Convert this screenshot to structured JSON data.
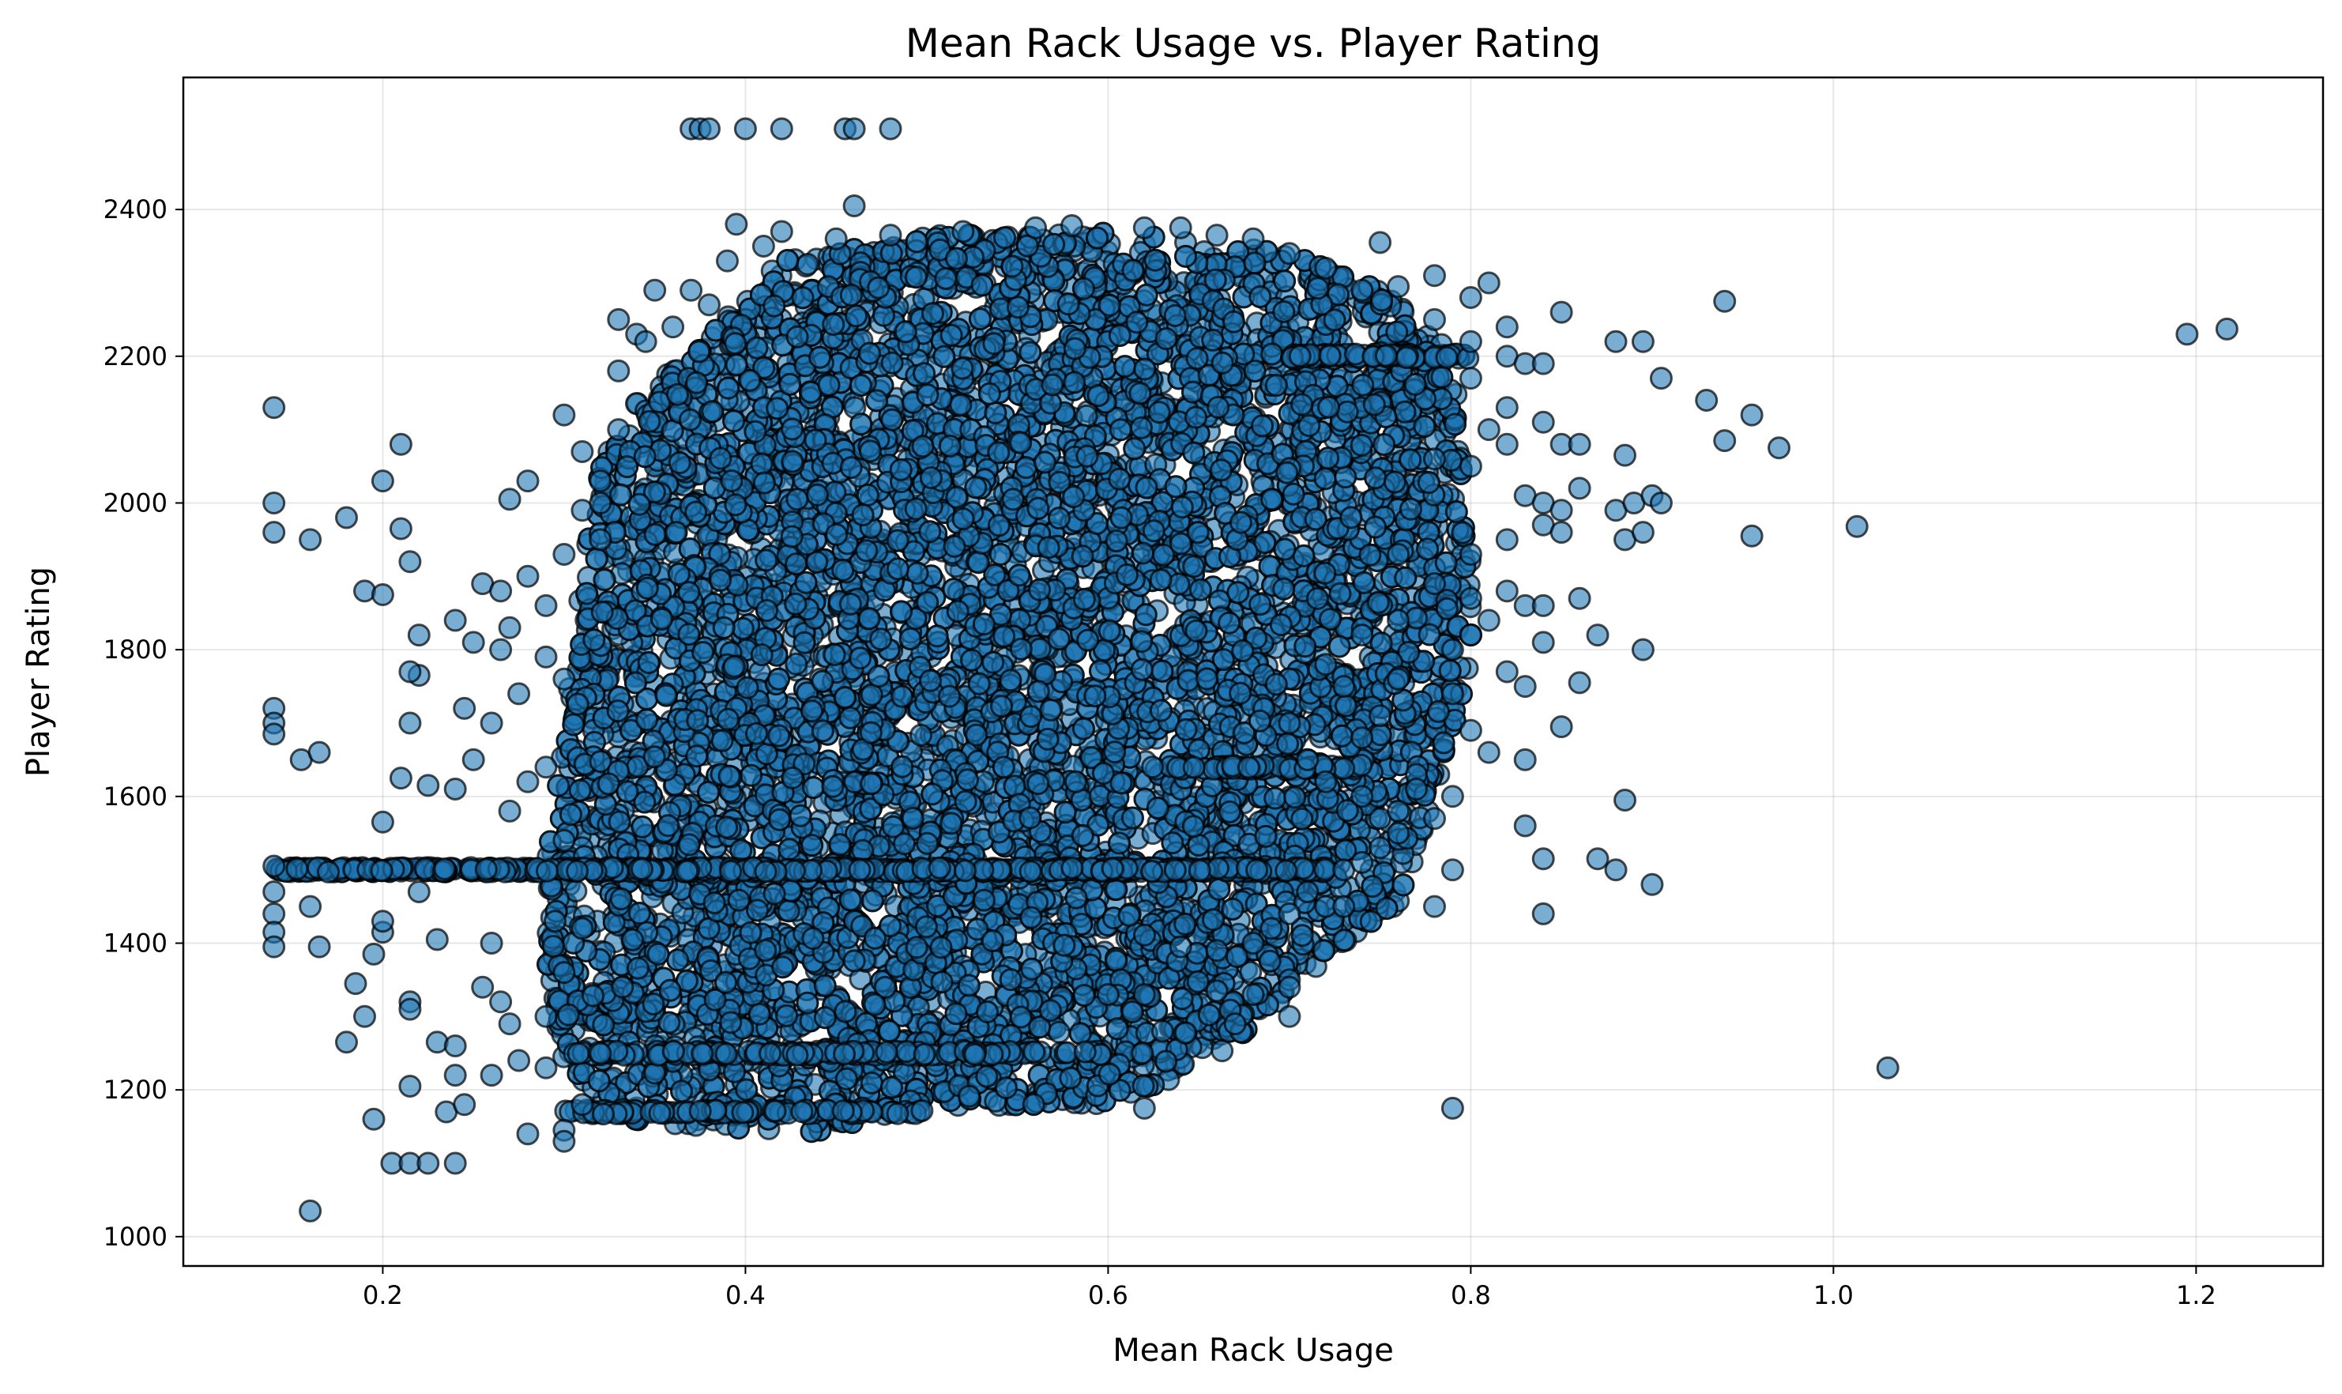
{
  "chart_data": {
    "type": "scatter",
    "title": "Mean Rack Usage vs. Player Rating",
    "xlabel": "Mean Rack Usage",
    "ylabel": "Player Rating",
    "xlim": [
      0.09,
      1.27
    ],
    "ylim": [
      960,
      2580
    ],
    "xticks": [
      0.2,
      0.4,
      0.6,
      0.8,
      1.0,
      1.2
    ],
    "xtick_labels": [
      "0.2",
      "0.4",
      "0.6",
      "0.8",
      "1.0",
      "1.2"
    ],
    "yticks": [
      1000,
      1200,
      1400,
      1600,
      1800,
      2000,
      2200,
      2400
    ],
    "ytick_labels": [
      "1000",
      "1200",
      "1400",
      "1600",
      "1800",
      "2000",
      "2200",
      "2400"
    ],
    "grid": true,
    "legend": "none",
    "marker_face_color": "#1f77b4",
    "marker_edge_color": "#000000",
    "marker_alpha": 0.6,
    "series": [
      {
        "points": [
          [
            0.14,
            2130
          ],
          [
            0.14,
            2000
          ],
          [
            0.14,
            1960
          ],
          [
            0.14,
            1720
          ],
          [
            0.14,
            1700
          ],
          [
            0.14,
            1685
          ],
          [
            0.14,
            1505
          ],
          [
            0.14,
            1470
          ],
          [
            0.14,
            1440
          ],
          [
            0.14,
            1415
          ],
          [
            0.14,
            1395
          ],
          [
            0.16,
            1950
          ],
          [
            0.155,
            1650
          ],
          [
            0.165,
            1660
          ],
          [
            0.16,
            1450
          ],
          [
            0.165,
            1395
          ],
          [
            0.16,
            1035
          ],
          [
            0.18,
            1980
          ],
          [
            0.19,
            1880
          ],
          [
            0.2,
            1875
          ],
          [
            0.2,
            2030
          ],
          [
            0.21,
            2080
          ],
          [
            0.21,
            1965
          ],
          [
            0.215,
            1920
          ],
          [
            0.2,
            1565
          ],
          [
            0.21,
            1625
          ],
          [
            0.185,
            1345
          ],
          [
            0.19,
            1300
          ],
          [
            0.18,
            1265
          ],
          [
            0.195,
            1385
          ],
          [
            0.2,
            1415
          ],
          [
            0.2,
            1430
          ],
          [
            0.195,
            1160
          ],
          [
            0.215,
            1205
          ],
          [
            0.205,
            1100
          ],
          [
            0.215,
            1100
          ],
          [
            0.225,
            1100
          ],
          [
            0.24,
            1100
          ],
          [
            0.22,
            1820
          ],
          [
            0.22,
            1765
          ],
          [
            0.215,
            1770
          ],
          [
            0.215,
            1700
          ],
          [
            0.225,
            1615
          ],
          [
            0.22,
            1470
          ],
          [
            0.215,
            1320
          ],
          [
            0.215,
            1310
          ],
          [
            0.23,
            1405
          ],
          [
            0.23,
            1265
          ],
          [
            0.24,
            1260
          ],
          [
            0.235,
            1170
          ],
          [
            0.245,
            1180
          ],
          [
            0.24,
            1220
          ],
          [
            0.24,
            1840
          ],
          [
            0.25,
            1810
          ],
          [
            0.245,
            1720
          ],
          [
            0.26,
            1700
          ],
          [
            0.25,
            1650
          ],
          [
            0.24,
            1610
          ],
          [
            0.255,
            1890
          ],
          [
            0.265,
            1880
          ],
          [
            0.27,
            2005
          ],
          [
            0.28,
            2030
          ],
          [
            0.28,
            1900
          ],
          [
            0.27,
            1830
          ],
          [
            0.265,
            1800
          ],
          [
            0.29,
            1860
          ],
          [
            0.29,
            1790
          ],
          [
            0.275,
            1740
          ],
          [
            0.3,
            1760
          ],
          [
            0.29,
            1640
          ],
          [
            0.28,
            1620
          ],
          [
            0.27,
            1580
          ],
          [
            0.3,
            1540
          ],
          [
            0.26,
            1400
          ],
          [
            0.255,
            1340
          ],
          [
            0.265,
            1320
          ],
          [
            0.27,
            1290
          ],
          [
            0.275,
            1240
          ],
          [
            0.26,
            1220
          ],
          [
            0.28,
            1140
          ],
          [
            0.29,
            1230
          ],
          [
            0.29,
            1300
          ],
          [
            0.3,
            1145
          ],
          [
            0.3,
            1130
          ],
          [
            0.31,
            1180
          ],
          [
            0.295,
            1430
          ],
          [
            0.31,
            1420
          ],
          [
            0.3,
            1360
          ],
          [
            0.3,
            2120
          ],
          [
            0.31,
            2070
          ],
          [
            0.32,
            2030
          ],
          [
            0.31,
            1990
          ],
          [
            0.32,
            1950
          ],
          [
            0.3,
            1930
          ],
          [
            0.33,
            2100
          ],
          [
            0.32,
            2000
          ],
          [
            0.33,
            2250
          ],
          [
            0.34,
            2230
          ],
          [
            0.35,
            2290
          ],
          [
            0.36,
            2240
          ],
          [
            0.33,
            2180
          ],
          [
            0.345,
            2220
          ],
          [
            0.37,
            2510
          ],
          [
            0.375,
            2510
          ],
          [
            0.38,
            2510
          ],
          [
            0.4,
            2510
          ],
          [
            0.42,
            2510
          ],
          [
            0.455,
            2510
          ],
          [
            0.46,
            2510
          ],
          [
            0.48,
            2510
          ],
          [
            0.37,
            2290
          ],
          [
            0.38,
            2270
          ],
          [
            0.395,
            2380
          ],
          [
            0.41,
            2350
          ],
          [
            0.42,
            2370
          ],
          [
            0.39,
            2330
          ],
          [
            0.46,
            2405
          ],
          [
            0.45,
            2360
          ],
          [
            0.48,
            2365
          ],
          [
            0.52,
            2370
          ],
          [
            0.56,
            2375
          ],
          [
            0.58,
            2378
          ],
          [
            0.62,
            2375
          ],
          [
            0.64,
            2375
          ],
          [
            0.66,
            2365
          ],
          [
            0.68,
            2360
          ],
          [
            0.7,
            2340
          ],
          [
            0.72,
            2320
          ],
          [
            0.75,
            2355
          ],
          [
            0.74,
            2290
          ],
          [
            0.76,
            2295
          ],
          [
            0.78,
            2310
          ],
          [
            0.8,
            2280
          ],
          [
            0.81,
            2300
          ],
          [
            0.82,
            2240
          ],
          [
            0.85,
            2260
          ],
          [
            0.78,
            2250
          ],
          [
            0.8,
            2220
          ],
          [
            0.82,
            2200
          ],
          [
            0.83,
            2190
          ],
          [
            0.84,
            2190
          ],
          [
            0.8,
            2170
          ],
          [
            0.82,
            2130
          ],
          [
            0.81,
            2100
          ],
          [
            0.84,
            2110
          ],
          [
            0.78,
            2060
          ],
          [
            0.8,
            2050
          ],
          [
            0.82,
            2080
          ],
          [
            0.85,
            2080
          ],
          [
            0.86,
            2080
          ],
          [
            0.83,
            2010
          ],
          [
            0.84,
            2000
          ],
          [
            0.85,
            1990
          ],
          [
            0.86,
            2020
          ],
          [
            0.84,
            1970
          ],
          [
            0.85,
            1960
          ],
          [
            0.82,
            1950
          ],
          [
            0.8,
            1930
          ],
          [
            0.76,
            1930
          ],
          [
            0.78,
            1890
          ],
          [
            0.8,
            1870
          ],
          [
            0.82,
            1880
          ],
          [
            0.83,
            1860
          ],
          [
            0.84,
            1860
          ],
          [
            0.81,
            1840
          ],
          [
            0.8,
            1820
          ],
          [
            0.79,
            1800
          ],
          [
            0.82,
            1770
          ],
          [
            0.83,
            1750
          ],
          [
            0.84,
            1810
          ],
          [
            0.86,
            1870
          ],
          [
            0.76,
            1840
          ],
          [
            0.74,
            1820
          ],
          [
            0.72,
            1780
          ],
          [
            0.73,
            1750
          ],
          [
            0.75,
            1710
          ],
          [
            0.74,
            1680
          ],
          [
            0.76,
            1760
          ],
          [
            0.79,
            1740
          ],
          [
            0.8,
            1690
          ],
          [
            0.81,
            1660
          ],
          [
            0.83,
            1650
          ],
          [
            0.79,
            1600
          ],
          [
            0.7,
            1700
          ],
          [
            0.71,
            1650
          ],
          [
            0.72,
            1620
          ],
          [
            0.74,
            1600
          ],
          [
            0.75,
            1570
          ],
          [
            0.77,
            1630
          ],
          [
            0.77,
            1610
          ],
          [
            0.76,
            1580
          ],
          [
            0.75,
            1530
          ],
          [
            0.73,
            1500
          ],
          [
            0.74,
            1510
          ],
          [
            0.76,
            1550
          ],
          [
            0.78,
            1570
          ],
          [
            0.7,
            1440
          ],
          [
            0.71,
            1470
          ],
          [
            0.72,
            1450
          ],
          [
            0.73,
            1450
          ],
          [
            0.69,
            1420
          ],
          [
            0.7,
            1350
          ],
          [
            0.7,
            1340
          ],
          [
            0.7,
            1300
          ],
          [
            0.68,
            1330
          ],
          [
            0.66,
            1335
          ],
          [
            0.67,
            1290
          ],
          [
            0.66,
            1390
          ],
          [
            0.68,
            1400
          ],
          [
            0.64,
            1395
          ],
          [
            0.63,
            1280
          ],
          [
            0.62,
            1330
          ],
          [
            0.6,
            1330
          ],
          [
            0.62,
            1175
          ],
          [
            0.78,
            1450
          ],
          [
            0.79,
            1500
          ],
          [
            0.79,
            1175
          ],
          [
            0.83,
            1560
          ],
          [
            0.84,
            1440
          ],
          [
            0.84,
            1515
          ],
          [
            0.87,
            1515
          ],
          [
            0.88,
            1500
          ],
          [
            0.9,
            1480
          ],
          [
            0.87,
            1820
          ],
          [
            0.88,
            1990
          ],
          [
            0.885,
            1950
          ],
          [
            0.89,
            2000
          ],
          [
            0.9,
            2010
          ],
          [
            0.905,
            2000
          ],
          [
            0.895,
            1960
          ],
          [
            0.895,
            1800
          ],
          [
            0.885,
            1595
          ],
          [
            0.86,
            1755
          ],
          [
            0.85,
            1695
          ],
          [
            0.88,
            2220
          ],
          [
            0.895,
            2220
          ],
          [
            0.905,
            2170
          ],
          [
            0.885,
            2065
          ],
          [
            0.93,
            2140
          ],
          [
            0.94,
            2275
          ],
          [
            0.94,
            2085
          ],
          [
            0.955,
            2120
          ],
          [
            0.97,
            2075
          ],
          [
            0.955,
            1955
          ],
          [
            1.013,
            1968
          ],
          [
            1.03,
            1230
          ],
          [
            1.195,
            2230
          ],
          [
            1.217,
            2237
          ]
        ],
        "dense_bands": [
          {
            "shape": "polygon",
            "vertices": [
              [
                0.3,
                1240
              ],
              [
                0.33,
                1160
              ],
              [
                0.38,
                1150
              ],
              [
                0.45,
                1140
              ],
              [
                0.5,
                1175
              ],
              [
                0.6,
                1180
              ],
              [
                0.66,
                1240
              ],
              [
                0.72,
                1380
              ],
              [
                0.76,
                1450
              ],
              [
                0.78,
                1600
              ],
              [
                0.8,
                1780
              ],
              [
                0.8,
                2000
              ],
              [
                0.79,
                2200
              ],
              [
                0.76,
                2280
              ],
              [
                0.7,
                2340
              ],
              [
                0.6,
                2370
              ],
              [
                0.48,
                2365
              ],
              [
                0.42,
                2330
              ],
              [
                0.38,
                2230
              ],
              [
                0.34,
                2140
              ],
              [
                0.32,
                2050
              ],
              [
                0.31,
                1900
              ],
              [
                0.3,
                1700
              ],
              [
                0.29,
                1500
              ],
              [
                0.29,
                1350
              ]
            ],
            "count": 9000,
            "core_x": [
              0.35,
              0.72
            ],
            "core_y": [
              1300,
              2300
            ]
          },
          {
            "shape": "line",
            "y": 1500,
            "x_range": [
              0.14,
              0.72
            ],
            "count": 500
          },
          {
            "shape": "line",
            "y": 1250,
            "x_range": [
              0.3,
              0.6
            ],
            "count": 120
          },
          {
            "shape": "line",
            "y": 1170,
            "x_range": [
              0.29,
              0.5
            ],
            "count": 80
          },
          {
            "shape": "line",
            "y": 1640,
            "x_range": [
              0.62,
              0.74
            ],
            "count": 60
          },
          {
            "shape": "line",
            "y": 2200,
            "x_range": [
              0.7,
              0.8
            ],
            "count": 60
          }
        ]
      }
    ]
  }
}
